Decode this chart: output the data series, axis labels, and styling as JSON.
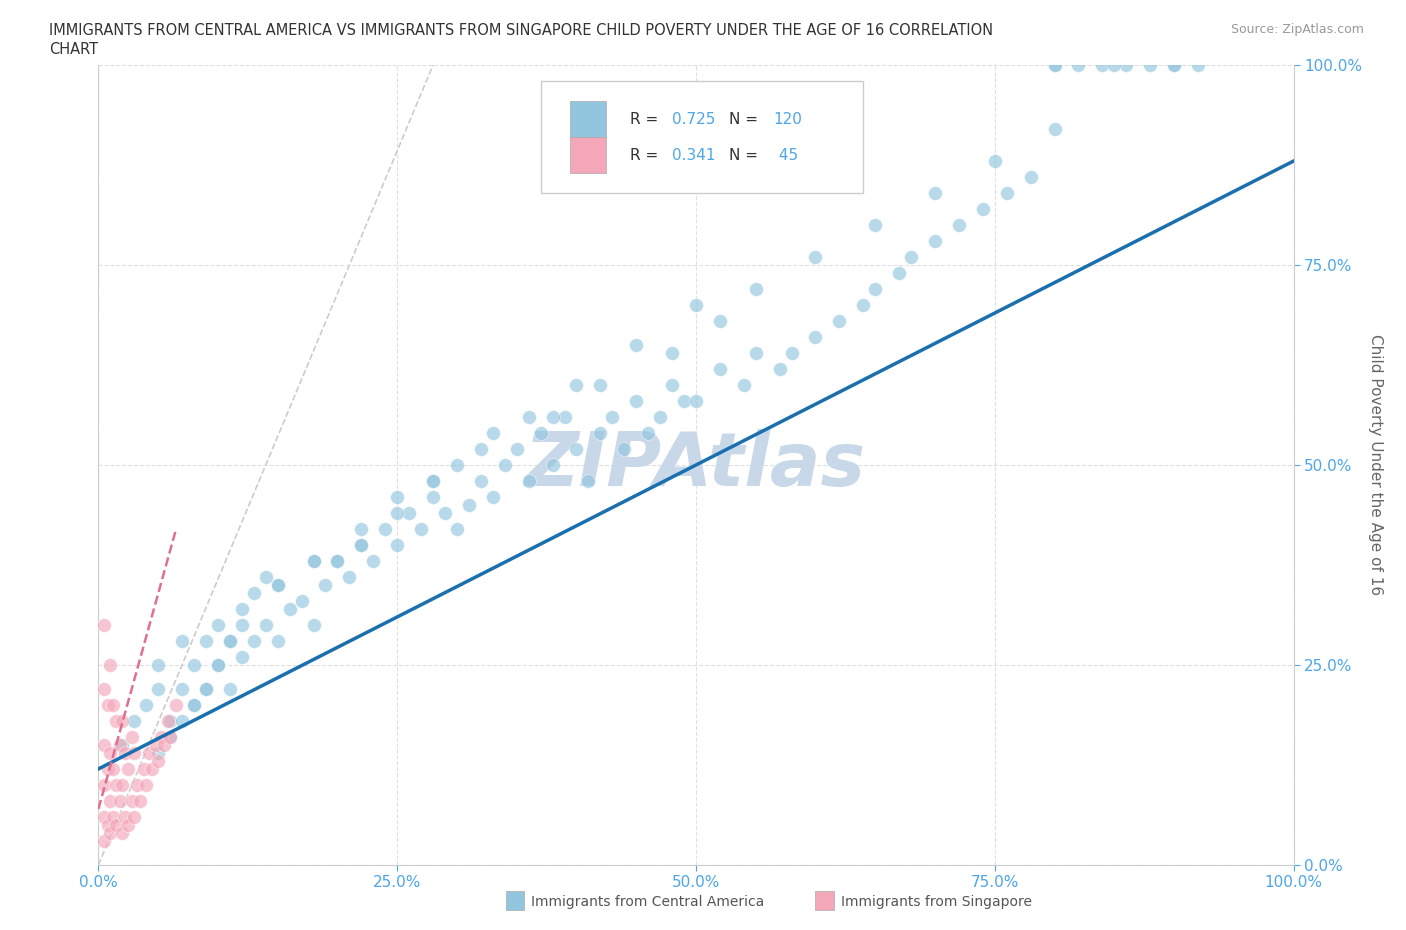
{
  "title_line1": "IMMIGRANTS FROM CENTRAL AMERICA VS IMMIGRANTS FROM SINGAPORE CHILD POVERTY UNDER THE AGE OF 16 CORRELATION",
  "title_line2": "CHART",
  "source": "Source: ZipAtlas.com",
  "xlabel_ca": "Immigrants from Central America",
  "xlabel_sg": "Immigrants from Singapore",
  "ylabel": "Child Poverty Under the Age of 16",
  "x_tick_labels": [
    "0.0%",
    "25.0%",
    "50.0%",
    "75.0%",
    "100.0%"
  ],
  "y_tick_labels": [
    "0.0%",
    "25.0%",
    "50.0%",
    "75.0%",
    "100.0%"
  ],
  "xlim": [
    0,
    1
  ],
  "ylim": [
    0,
    1
  ],
  "R_central": 0.725,
  "N_central": 120,
  "R_singapore": 0.341,
  "N_singapore": 45,
  "color_central": "#92c5de",
  "color_singapore": "#f4a7b9",
  "trendline_central_color": "#1a6faf",
  "trendline_singapore_color": "#e07090",
  "watermark": "ZIPAtlas",
  "watermark_color": "#c8d8e8",
  "ca_x": [
    0.02,
    0.03,
    0.04,
    0.05,
    0.05,
    0.06,
    0.07,
    0.07,
    0.08,
    0.08,
    0.09,
    0.09,
    0.1,
    0.1,
    0.11,
    0.11,
    0.12,
    0.12,
    0.13,
    0.13,
    0.14,
    0.14,
    0.15,
    0.15,
    0.16,
    0.17,
    0.18,
    0.18,
    0.19,
    0.2,
    0.21,
    0.22,
    0.23,
    0.24,
    0.25,
    0.26,
    0.27,
    0.28,
    0.29,
    0.3,
    0.31,
    0.32,
    0.33,
    0.34,
    0.35,
    0.36,
    0.37,
    0.38,
    0.39,
    0.4,
    0.41,
    0.42,
    0.43,
    0.44,
    0.45,
    0.46,
    0.47,
    0.48,
    0.49,
    0.5,
    0.52,
    0.54,
    0.55,
    0.57,
    0.58,
    0.6,
    0.62,
    0.64,
    0.65,
    0.67,
    0.68,
    0.7,
    0.72,
    0.74,
    0.76,
    0.78,
    0.8,
    0.82,
    0.84,
    0.86,
    0.88,
    0.9,
    0.92,
    0.8,
    0.85,
    0.9,
    0.05,
    0.06,
    0.07,
    0.08,
    0.09,
    0.1,
    0.11,
    0.12,
    0.15,
    0.18,
    0.22,
    0.25,
    0.28,
    0.32,
    0.38,
    0.42,
    0.48,
    0.52,
    0.55,
    0.6,
    0.65,
    0.7,
    0.75,
    0.8,
    0.2,
    0.22,
    0.25,
    0.28,
    0.3,
    0.33,
    0.36,
    0.4,
    0.45,
    0.5
  ],
  "ca_y": [
    0.15,
    0.18,
    0.2,
    0.22,
    0.25,
    0.18,
    0.22,
    0.28,
    0.2,
    0.25,
    0.22,
    0.28,
    0.25,
    0.3,
    0.22,
    0.28,
    0.26,
    0.32,
    0.28,
    0.34,
    0.3,
    0.36,
    0.28,
    0.35,
    0.32,
    0.33,
    0.3,
    0.38,
    0.35,
    0.38,
    0.36,
    0.4,
    0.38,
    0.42,
    0.4,
    0.44,
    0.42,
    0.46,
    0.44,
    0.42,
    0.45,
    0.48,
    0.46,
    0.5,
    0.52,
    0.48,
    0.54,
    0.5,
    0.56,
    0.52,
    0.48,
    0.54,
    0.56,
    0.52,
    0.58,
    0.54,
    0.56,
    0.6,
    0.58,
    0.58,
    0.62,
    0.6,
    0.64,
    0.62,
    0.64,
    0.66,
    0.68,
    0.7,
    0.72,
    0.74,
    0.76,
    0.78,
    0.8,
    0.82,
    0.84,
    0.86,
    1.0,
    1.0,
    1.0,
    1.0,
    1.0,
    1.0,
    1.0,
    1.0,
    1.0,
    1.0,
    0.14,
    0.16,
    0.18,
    0.2,
    0.22,
    0.25,
    0.28,
    0.3,
    0.35,
    0.38,
    0.42,
    0.46,
    0.48,
    0.52,
    0.56,
    0.6,
    0.64,
    0.68,
    0.72,
    0.76,
    0.8,
    0.84,
    0.88,
    0.92,
    0.38,
    0.4,
    0.44,
    0.48,
    0.5,
    0.54,
    0.56,
    0.6,
    0.65,
    0.7
  ],
  "sg_x": [
    0.005,
    0.005,
    0.005,
    0.005,
    0.005,
    0.005,
    0.008,
    0.008,
    0.008,
    0.01,
    0.01,
    0.01,
    0.01,
    0.012,
    0.012,
    0.012,
    0.015,
    0.015,
    0.015,
    0.018,
    0.018,
    0.02,
    0.02,
    0.02,
    0.022,
    0.022,
    0.025,
    0.025,
    0.028,
    0.028,
    0.03,
    0.03,
    0.032,
    0.035,
    0.038,
    0.04,
    0.042,
    0.045,
    0.048,
    0.05,
    0.052,
    0.055,
    0.058,
    0.06,
    0.065
  ],
  "sg_y": [
    0.03,
    0.06,
    0.1,
    0.15,
    0.22,
    0.3,
    0.05,
    0.12,
    0.2,
    0.04,
    0.08,
    0.14,
    0.25,
    0.06,
    0.12,
    0.2,
    0.05,
    0.1,
    0.18,
    0.08,
    0.15,
    0.04,
    0.1,
    0.18,
    0.06,
    0.14,
    0.05,
    0.12,
    0.08,
    0.16,
    0.06,
    0.14,
    0.1,
    0.08,
    0.12,
    0.1,
    0.14,
    0.12,
    0.15,
    0.13,
    0.16,
    0.15,
    0.18,
    0.16,
    0.2
  ],
  "ca_trendline_x0": 0.0,
  "ca_trendline_y0": 0.12,
  "ca_trendline_x1": 1.0,
  "ca_trendline_y1": 0.88,
  "sg_trendline_x0": 0.0,
  "sg_trendline_y0": 0.07,
  "sg_trendline_x1": 0.065,
  "sg_trendline_y1": 0.42
}
